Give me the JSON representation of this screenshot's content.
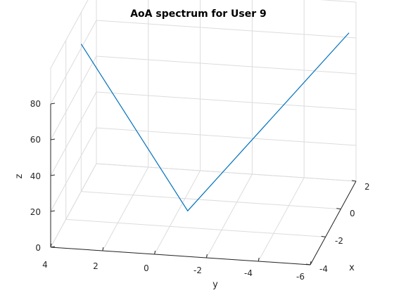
{
  "chart_data": {
    "type": "line",
    "title": "AoA spectrum for User 9",
    "xlabel": "x",
    "ylabel": "y",
    "zlabel": "z",
    "x_ticks": [
      "-4",
      "-2",
      "0",
      "2"
    ],
    "y_ticks": [
      "4",
      "2",
      "0",
      "-2",
      "-4",
      "-6"
    ],
    "z_ticks": [
      "0",
      "20",
      "40",
      "60",
      "80"
    ],
    "xlim": [
      -4,
      2
    ],
    "ylim": [
      -6,
      4
    ],
    "zlim": [
      0,
      100
    ],
    "grid": true,
    "series": [
      {
        "points": [
          {
            "x": -0.95,
            "y": 3.72,
            "z": 90
          },
          {
            "x": -0.84,
            "y": -0.35,
            "z": 0
          },
          {
            "x": 1.08,
            "y": -6.0,
            "z": 90
          }
        ]
      }
    ],
    "colors": {
      "line": "#0072bd",
      "grid": "#dcdcdc",
      "axis": "#262626"
    }
  }
}
